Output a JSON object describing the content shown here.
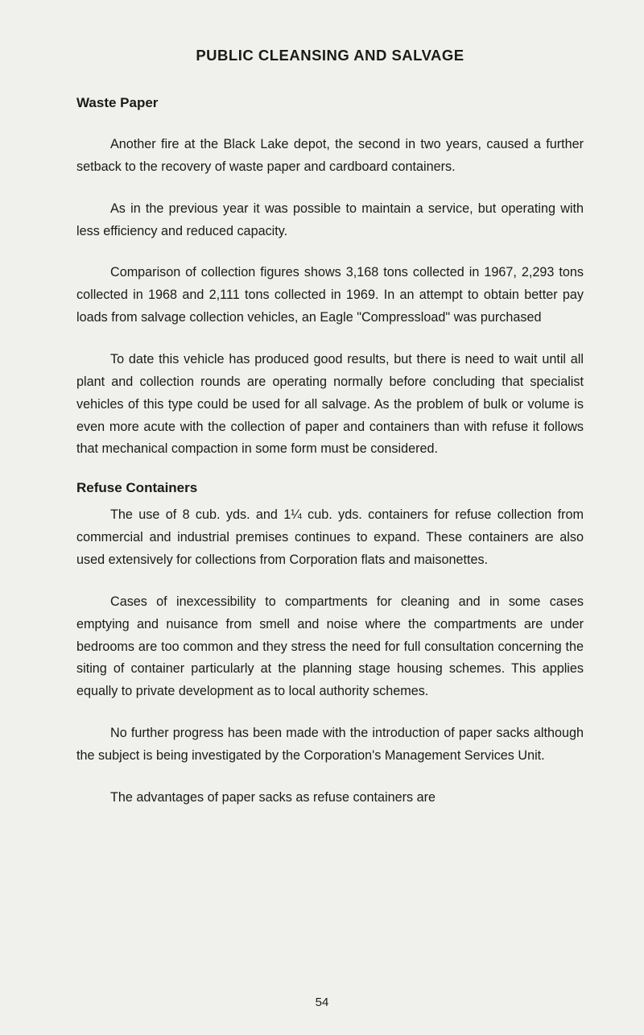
{
  "title": "PUBLIC CLEANSING AND SALVAGE",
  "sections": {
    "wastePaper": {
      "heading": "Waste Paper",
      "p1": "Another fire at the Black Lake depot, the second in two years, caused a further setback to the recovery of waste paper and cardboard containers.",
      "p2": "As in the previous year it was possible to maintain a service, but operating with less efficiency and reduced capacity.",
      "p3": "Comparison of collection figures shows 3,168 tons collected in 1967, 2,293 tons collected in 1968 and 2,111 tons collected in 1969. In an attempt to obtain better pay loads from salvage collection vehicles, an Eagle \"Compressload\" was purchased",
      "p4": "To date this vehicle has produced good results, but there is need to wait until all plant and collection rounds are operating normally before concluding that specialist vehicles of this type could be used for all salvage. As the problem of bulk or volume is even more acute with the collection of paper and containers than with refuse it follows that mechanical compaction in some form must be considered."
    },
    "refuseContainers": {
      "heading": "Refuse Containers",
      "p1": "The use of 8 cub. yds. and 1¼ cub. yds. containers for refuse collection from commercial and industrial premises continues to expand. These containers are also used extensively for collections from Corporation flats and maisonettes.",
      "p2": "Cases of inexcessibility to compartments for cleaning and in some cases emptying and nuisance from smell and noise where the compartments are under bedrooms are too common and they stress the need for full consultation concerning the siting of container particularly at the planning stage housing schemes. This applies equally to private development as to local authority schemes.",
      "p3": "No further progress has been made with the introduction of paper sacks although the subject is being investigated by the Corporation's Management Services Unit.",
      "p4": "The advantages of paper sacks as refuse containers are"
    }
  },
  "pageNumber": "54"
}
